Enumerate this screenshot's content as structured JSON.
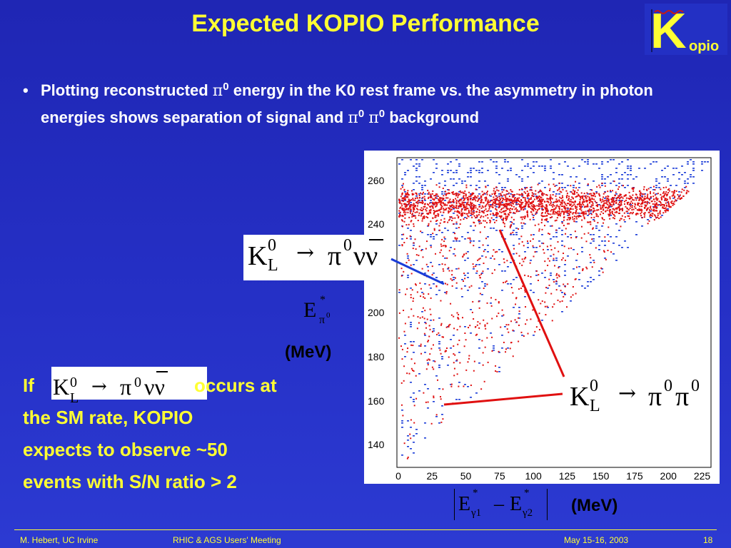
{
  "title": "Expected KOPIO Performance",
  "logo": {
    "letter": "K",
    "suffix": "opio"
  },
  "bullet": {
    "marker": "•",
    "part1": "Plotting reconstructed ",
    "pi": "π",
    "sup_zero": "0",
    "part2": " energy in the K0 rest frame vs. the asymmetry in photon energies shows separation of signal and ",
    "part3": " background"
  },
  "plot": {
    "y_ticks": [
      "260",
      "240",
      "200",
      "180",
      "160",
      "140"
    ],
    "x_ticks": [
      "0",
      "25",
      "50",
      "75",
      "100",
      "125",
      "150",
      "175",
      "200",
      "225"
    ],
    "y_unit": "(MeV)",
    "x_unit": "(MeV)",
    "signal_label": {
      "k": "K",
      "sup": "0",
      "sub": "L",
      "arrow": "→",
      "rhs": "π",
      "rhs_sup": "0",
      "nu": "νν"
    },
    "background_label": {
      "k": "K",
      "sup": "0",
      "sub": "L",
      "arrow": "→",
      "rhs": "π",
      "rhs_sup": "0",
      "rhs2": "π",
      "rhs2_sup": "0"
    },
    "y_axis_label": {
      "e": "E",
      "star": "*",
      "sub": "π",
      "sub_sup": "0"
    },
    "x_axis_label": {
      "e": "E",
      "star": "*",
      "g1": "γ1",
      "minus": "–",
      "g2": "γ2"
    }
  },
  "left_text": {
    "if": "If",
    "occurs": "occurs at",
    "line2": "the SM rate, KOPIO",
    "line3": "expects to observe ~50",
    "line4": "events with S/N ratio > 2",
    "decay": {
      "k": "K",
      "sup": "0",
      "sub": "L",
      "arrow": "→",
      "rhs": "π",
      "rhs_sup": "0",
      "nu": "νν"
    }
  },
  "footer": {
    "author": "M. Hebert, UC Irvine",
    "meeting": "RHIC & AGS Users' Meeting",
    "date": "May 15-16, 2003",
    "page": "18"
  },
  "colors": {
    "background": "#2330c4",
    "title": "#ffff33",
    "signal": "#1a3cd8",
    "background_points": "#e01010"
  }
}
